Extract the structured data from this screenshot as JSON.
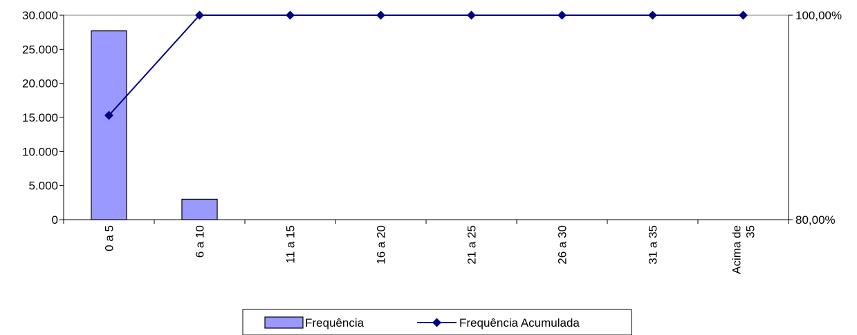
{
  "chart_data": {
    "type": "bar",
    "categories": [
      "0 a 5",
      "6 a 10",
      "11 a 15",
      "16 a 20",
      "21 a 25",
      "26 a 30",
      "31 a 35",
      "Acima de 35"
    ],
    "category_label_lines": [
      [
        "0 a 5"
      ],
      [
        "6 a 10"
      ],
      [
        "11 a 15"
      ],
      [
        "16 a 20"
      ],
      [
        "21 a 25"
      ],
      [
        "26 a 30"
      ],
      [
        "31 a 35"
      ],
      [
        "Acima de",
        "35"
      ]
    ],
    "series": [
      {
        "name": "Frequência",
        "type": "bar",
        "axis": "left",
        "color": "#9999ff",
        "values": [
          27700,
          3000,
          0,
          0,
          0,
          0,
          0,
          0
        ]
      },
      {
        "name": "Frequência Acumulada",
        "type": "line",
        "axis": "right",
        "color": "#000080",
        "values": [
          90.2,
          100,
          100,
          100,
          100,
          100,
          100,
          100
        ]
      }
    ],
    "y_left": {
      "ylim": [
        0,
        30000
      ],
      "ticks": [
        0,
        5000,
        10000,
        15000,
        20000,
        25000,
        30000
      ],
      "tick_labels": [
        "0",
        "5.000",
        "10.000",
        "15.000",
        "20.000",
        "25.000",
        "30.000"
      ]
    },
    "y_right": {
      "ylim": [
        80,
        100
      ],
      "ticks": [
        80,
        100
      ],
      "tick_labels": [
        "80,00%",
        "100,00%"
      ]
    },
    "legend": {
      "position": "bottom",
      "labels": [
        "Frequência",
        "Frequência Acumulada"
      ]
    },
    "grid": false
  }
}
